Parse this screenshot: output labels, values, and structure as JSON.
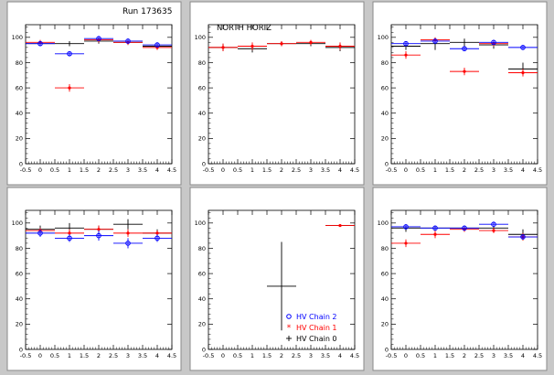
{
  "figure": {
    "run_label": "Run 173635",
    "legend": {
      "entries": [
        {
          "label": "HV Chain 2",
          "color": "#0000ff",
          "marker": "circle"
        },
        {
          "label": "HV Chain 1",
          "color": "#ff0000",
          "marker": "star"
        },
        {
          "label": "HV Chain 0",
          "color": "#000000",
          "marker": "cross"
        }
      ]
    },
    "colors": {
      "chain2": "#0000ff",
      "chain1": "#ff0000",
      "chain0": "#000000"
    }
  },
  "chart_data": [
    {
      "type": "scatter",
      "annotation": "",
      "xlim": [
        -0.5,
        4.5
      ],
      "ylim": [
        0,
        110
      ],
      "xticks": [
        "-0.5",
        "0",
        "0.5",
        "1",
        "1.5",
        "2",
        "2.5",
        "3",
        "3.5",
        "4",
        "4.5"
      ],
      "yticks": [
        "0",
        "20",
        "40",
        "60",
        "80",
        "100"
      ],
      "series": [
        {
          "name": "HV Chain 0",
          "x": [
            0,
            1,
            2,
            3,
            4
          ],
          "y": [
            95,
            95,
            97,
            96,
            93
          ],
          "yerr": [
            2,
            2,
            2,
            2,
            2
          ]
        },
        {
          "name": "HV Chain 1",
          "x": [
            0,
            1,
            2,
            3,
            4
          ],
          "y": [
            96,
            60,
            98,
            96,
            92
          ],
          "yerr": [
            2,
            3,
            2,
            2,
            2
          ]
        },
        {
          "name": "HV Chain 2",
          "x": [
            0,
            1,
            2,
            3,
            4
          ],
          "y": [
            95,
            87,
            99,
            97,
            94
          ],
          "yerr": [
            2,
            2,
            2,
            2,
            2
          ]
        }
      ]
    },
    {
      "type": "scatter",
      "annotation": "NORTH HORIZ",
      "xlim": [
        -0.5,
        4.5
      ],
      "ylim": [
        0,
        110
      ],
      "xticks": [
        "-0.5",
        "0",
        "0.5",
        "1",
        "1.5",
        "2",
        "2.5",
        "3",
        "3.5",
        "4",
        "4.5"
      ],
      "yticks": [
        "0",
        "20",
        "40",
        "60",
        "80",
        "100"
      ],
      "series": [
        {
          "name": "HV Chain 0",
          "x": [
            0,
            1,
            2,
            3,
            4
          ],
          "y": [
            92,
            91,
            95,
            95,
            92
          ],
          "yerr": [
            3,
            3,
            2,
            2,
            3
          ]
        },
        {
          "name": "HV Chain 1",
          "x": [
            0,
            1,
            2,
            3,
            4
          ],
          "y": [
            92,
            93,
            95,
            96,
            93
          ],
          "yerr": [
            3,
            3,
            2,
            2,
            3
          ]
        }
      ]
    },
    {
      "type": "scatter",
      "annotation": "",
      "xlim": [
        -0.5,
        4.5
      ],
      "ylim": [
        0,
        110
      ],
      "xticks": [
        "-0.5",
        "0",
        "0.5",
        "1",
        "1.5",
        "2",
        "2.5",
        "3",
        "3.5",
        "4",
        "4.5"
      ],
      "yticks": [
        "0",
        "20",
        "40",
        "60",
        "80",
        "100"
      ],
      "series": [
        {
          "name": "HV Chain 0",
          "x": [
            0,
            1,
            2,
            3,
            4
          ],
          "y": [
            93,
            95,
            96,
            94,
            75
          ],
          "yerr": [
            3,
            5,
            3,
            3,
            5
          ]
        },
        {
          "name": "HV Chain 1",
          "x": [
            0,
            1,
            2,
            3,
            4
          ],
          "y": [
            86,
            98,
            73,
            95,
            72
          ],
          "yerr": [
            3,
            2,
            3,
            2,
            3
          ]
        },
        {
          "name": "HV Chain 2",
          "x": [
            0,
            1,
            2,
            3,
            4
          ],
          "y": [
            95,
            97,
            91,
            96,
            92
          ],
          "yerr": [
            2,
            2,
            2,
            2,
            2
          ]
        }
      ]
    },
    {
      "type": "scatter",
      "annotation": "",
      "xlim": [
        -0.5,
        4.5
      ],
      "ylim": [
        0,
        110
      ],
      "xticks": [
        "-0.5",
        "0",
        "0.5",
        "1",
        "1.5",
        "2",
        "2.5",
        "3",
        "3.5",
        "4",
        "4.5"
      ],
      "yticks": [
        "0",
        "20",
        "40",
        "60",
        "80",
        "100"
      ],
      "series": [
        {
          "name": "HV Chain 0",
          "x": [
            0,
            1,
            2,
            3,
            4
          ],
          "y": [
            95,
            96,
            95,
            99,
            92
          ],
          "yerr": [
            3,
            4,
            3,
            4,
            3
          ]
        },
        {
          "name": "HV Chain 1",
          "x": [
            0,
            1,
            2,
            3,
            4
          ],
          "y": [
            94,
            92,
            95,
            92,
            92
          ],
          "yerr": [
            2,
            3,
            3,
            3,
            2
          ]
        },
        {
          "name": "HV Chain 2",
          "x": [
            0,
            1,
            2,
            3,
            4
          ],
          "y": [
            92,
            88,
            90,
            84,
            88
          ],
          "yerr": [
            3,
            3,
            4,
            4,
            3
          ]
        }
      ]
    },
    {
      "type": "scatter",
      "annotation": "",
      "show_legend": true,
      "xlim": [
        -0.5,
        4.5
      ],
      "ylim": [
        0,
        110
      ],
      "xticks": [
        "-0.5",
        "0",
        "0.5",
        "1",
        "1.5",
        "2",
        "2.5",
        "3",
        "3.5",
        "4",
        "4.5"
      ],
      "yticks": [
        "0",
        "20",
        "40",
        "60",
        "80",
        "100"
      ],
      "series": [
        {
          "name": "HV Chain 0",
          "x": [
            2,
            4
          ],
          "y": [
            50,
            98
          ],
          "yerr": [
            35,
            1
          ]
        },
        {
          "name": "HV Chain 1",
          "x": [
            4
          ],
          "y": [
            98
          ],
          "yerr": [
            1
          ]
        }
      ]
    },
    {
      "type": "scatter",
      "annotation": "",
      "xlim": [
        -0.5,
        4.5
      ],
      "ylim": [
        0,
        110
      ],
      "xticks": [
        "-0.5",
        "0",
        "0.5",
        "1",
        "1.5",
        "2",
        "2.5",
        "3",
        "3.5",
        "4",
        "4.5"
      ],
      "yticks": [
        "0",
        "20",
        "40",
        "60",
        "80",
        "100"
      ],
      "series": [
        {
          "name": "HV Chain 0",
          "x": [
            0,
            1,
            2,
            3,
            4
          ],
          "y": [
            96,
            96,
            96,
            96,
            91
          ],
          "yerr": [
            3,
            2,
            2,
            2,
            4
          ]
        },
        {
          "name": "HV Chain 1",
          "x": [
            0,
            1,
            2,
            3,
            4
          ],
          "y": [
            84,
            91,
            95,
            94,
            89
          ],
          "yerr": [
            3,
            3,
            2,
            2,
            3
          ]
        },
        {
          "name": "HV Chain 2",
          "x": [
            0,
            1,
            2,
            3,
            4
          ],
          "y": [
            97,
            96,
            96,
            99,
            89
          ],
          "yerr": [
            2,
            2,
            2,
            2,
            2
          ]
        }
      ]
    }
  ]
}
